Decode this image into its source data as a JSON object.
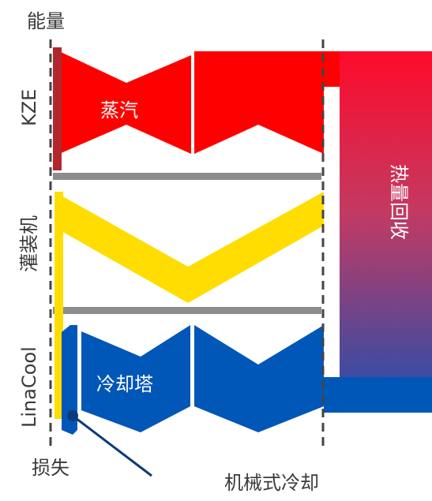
{
  "labels": {
    "energy": "能量",
    "loss": "损失",
    "mech_cooling": "机械式冷却",
    "kze": "KZE",
    "filler": "灌装机",
    "linacool": "LinaCool",
    "steam": "蒸汽",
    "cooling_tower": "冷却塔",
    "heat_recovery": "热量回收"
  },
  "colors": {
    "steam_red": "#ff0000",
    "dark_red": "#b0282e",
    "filler_yellow": "#ffdd00",
    "cooling_blue": "#0057b7",
    "dark_blue": "#0d3a7a",
    "divider_gray": "#8c8c8c",
    "heat_top": "#ff0a2a",
    "heat_bottom": "#1f4fb0",
    "dash_line": "#444444"
  }
}
